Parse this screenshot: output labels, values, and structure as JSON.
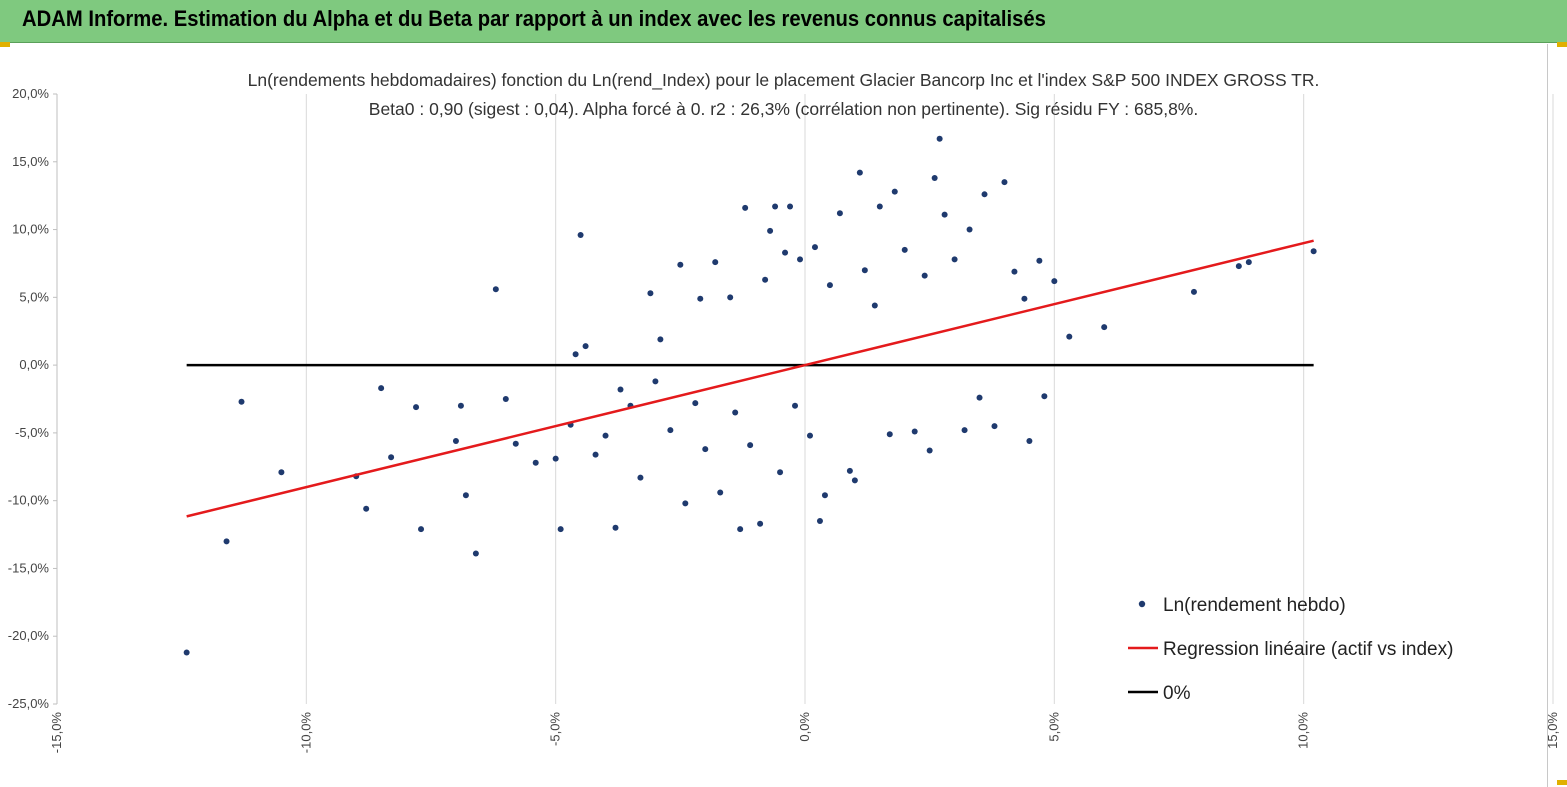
{
  "header": {
    "title": "ADAM Informe. Estimation du Alpha et du Beta par rapport à un index avec les revenus connus capitalisés"
  },
  "colors": {
    "header_bg": "#7fc97f",
    "points": "#1f3a6e",
    "regression": "#e41a1c",
    "zero_line": "#000000",
    "grid": "#d9d9d9"
  },
  "chart_data": {
    "type": "scatter",
    "title_line1": "Ln(rendements hebdomadaires) fonction du Ln(rend_Index) pour le placement Glacier Bancorp Inc et l'index S&P 500 INDEX GROSS TR.",
    "title_line2": "Beta0 : 0,90 (sigest : 0,04). Alpha forcé à 0. r2 : 26,3% (corrélation non pertinente). Sig résidu FY : 685,8%.",
    "xlim": [
      -15,
      15
    ],
    "ylim": [
      -25,
      20
    ],
    "x_ticks": [
      "-15,0%",
      "-10,0%",
      "-5,0%",
      "0,0%",
      "5,0%",
      "10,0%",
      "15,0%"
    ],
    "y_ticks": [
      "20,0%",
      "15,0%",
      "10,0%",
      "5,0%",
      "0,0%",
      "-5,0%",
      "-10,0%",
      "-15,0%",
      "-20,0%",
      "-25,0%"
    ],
    "grid": {
      "vertical": true,
      "horizontal": false
    },
    "legend_position": "bottom-right",
    "series": [
      {
        "name": "Ln(rendement hebdo)",
        "kind": "scatter",
        "points": [
          [
            -12.4,
            -21.2
          ],
          [
            -11.6,
            -13.0
          ],
          [
            -11.3,
            -2.7
          ],
          [
            -10.5,
            -7.9
          ],
          [
            -9.0,
            -8.2
          ],
          [
            -8.8,
            -10.6
          ],
          [
            -8.5,
            -1.7
          ],
          [
            -8.3,
            -6.8
          ],
          [
            -7.8,
            -3.1
          ],
          [
            -7.7,
            -12.1
          ],
          [
            -7.0,
            -5.6
          ],
          [
            -6.9,
            -3.0
          ],
          [
            -6.8,
            -9.6
          ],
          [
            -6.6,
            -13.9
          ],
          [
            -6.2,
            5.6
          ],
          [
            -6.0,
            -2.5
          ],
          [
            -5.8,
            -5.8
          ],
          [
            -5.4,
            -7.2
          ],
          [
            -5.0,
            -6.9
          ],
          [
            -4.9,
            -12.1
          ],
          [
            -4.7,
            -4.4
          ],
          [
            -4.6,
            0.8
          ],
          [
            -4.5,
            9.6
          ],
          [
            -4.4,
            1.4
          ],
          [
            -4.2,
            -6.6
          ],
          [
            -4.0,
            -5.2
          ],
          [
            -3.8,
            -12.0
          ],
          [
            -3.7,
            -1.8
          ],
          [
            -3.5,
            -3.0
          ],
          [
            -3.3,
            -8.3
          ],
          [
            -3.1,
            5.3
          ],
          [
            -3.0,
            -1.2
          ],
          [
            -2.9,
            1.9
          ],
          [
            -2.7,
            -4.8
          ],
          [
            -2.5,
            7.4
          ],
          [
            -2.4,
            -10.2
          ],
          [
            -2.2,
            -2.8
          ],
          [
            -2.1,
            4.9
          ],
          [
            -2.0,
            -6.2
          ],
          [
            -1.8,
            7.6
          ],
          [
            -1.7,
            -9.4
          ],
          [
            -1.5,
            5.0
          ],
          [
            -1.4,
            -3.5
          ],
          [
            -1.3,
            -12.1
          ],
          [
            -1.2,
            11.6
          ],
          [
            -1.1,
            -5.9
          ],
          [
            -0.9,
            -11.7
          ],
          [
            -0.8,
            6.3
          ],
          [
            -0.7,
            9.9
          ],
          [
            -0.6,
            11.7
          ],
          [
            -0.5,
            -7.9
          ],
          [
            -0.4,
            8.3
          ],
          [
            -0.3,
            11.7
          ],
          [
            -0.2,
            -3.0
          ],
          [
            -0.1,
            7.8
          ],
          [
            0.1,
            -5.2
          ],
          [
            0.2,
            8.7
          ],
          [
            0.3,
            -11.5
          ],
          [
            0.4,
            -9.6
          ],
          [
            0.5,
            5.9
          ],
          [
            0.7,
            11.2
          ],
          [
            0.9,
            -7.8
          ],
          [
            1.0,
            -8.5
          ],
          [
            1.1,
            14.2
          ],
          [
            1.2,
            7.0
          ],
          [
            1.4,
            4.4
          ],
          [
            1.5,
            11.7
          ],
          [
            1.7,
            -5.1
          ],
          [
            1.8,
            12.8
          ],
          [
            2.0,
            8.5
          ],
          [
            2.2,
            -4.9
          ],
          [
            2.4,
            6.6
          ],
          [
            2.5,
            -6.3
          ],
          [
            2.6,
            13.8
          ],
          [
            2.7,
            16.7
          ],
          [
            2.8,
            11.1
          ],
          [
            3.0,
            7.8
          ],
          [
            3.2,
            -4.8
          ],
          [
            3.3,
            10.0
          ],
          [
            3.5,
            -2.4
          ],
          [
            3.6,
            12.6
          ],
          [
            3.8,
            -4.5
          ],
          [
            4.0,
            13.5
          ],
          [
            4.2,
            6.9
          ],
          [
            4.4,
            4.9
          ],
          [
            4.5,
            -5.6
          ],
          [
            4.7,
            7.7
          ],
          [
            4.8,
            -2.3
          ],
          [
            5.0,
            6.2
          ],
          [
            5.3,
            2.1
          ],
          [
            6.0,
            2.8
          ],
          [
            7.8,
            5.4
          ],
          [
            8.7,
            7.3
          ],
          [
            8.9,
            7.6
          ],
          [
            10.2,
            8.4
          ]
        ]
      },
      {
        "name": "Regression linéaire (actif vs index)",
        "kind": "line",
        "slope": 0.9,
        "x_range": [
          -12.4,
          10.2
        ]
      },
      {
        "name": "0%",
        "kind": "line",
        "y": 0,
        "x_range": [
          -12.4,
          10.2
        ]
      }
    ]
  }
}
